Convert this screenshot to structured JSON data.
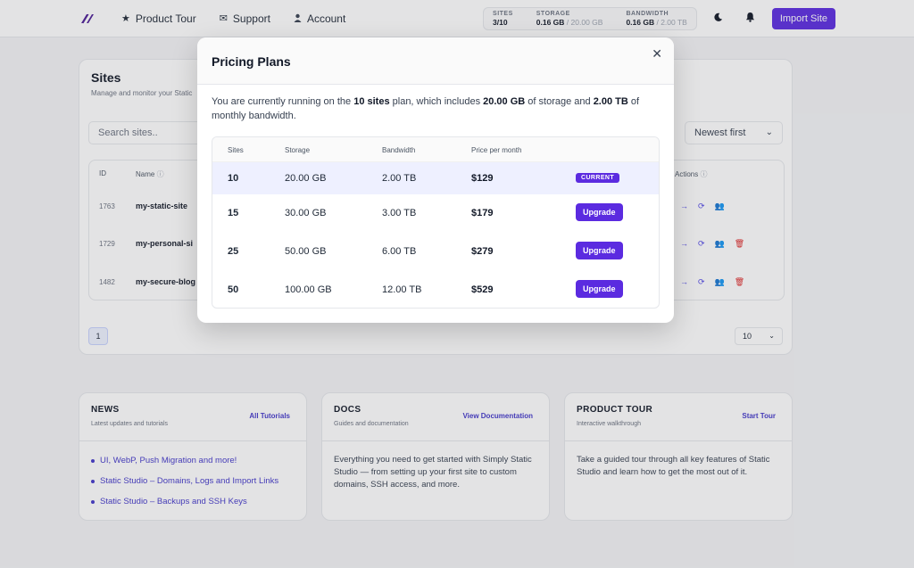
{
  "nav": {
    "items": [
      {
        "icon": "star-icon",
        "glyph": "★",
        "label": "Product Tour"
      },
      {
        "icon": "envelope-icon",
        "glyph": "✉",
        "label": "Support"
      },
      {
        "icon": "user-icon",
        "glyph": "👤",
        "label": "Account"
      }
    ],
    "usage": {
      "sites_label": "SITES",
      "sites_value": "3/10",
      "storage_label": "STORAGE",
      "storage_used": "0.16 GB",
      "storage_total": "/ 20.00 GB",
      "bandwidth_label": "BANDWIDTH",
      "bandwidth_used": "0.16 GB",
      "bandwidth_total": "/ 2.00 TB"
    },
    "import_label": "Import Site"
  },
  "sites": {
    "title": "Sites",
    "subtitle": "Manage and monitor your Static",
    "search_placeholder": "Search sites..",
    "sort_value": "Newest first",
    "columns": {
      "id": "ID",
      "name": "Name",
      "actions": "Actions"
    },
    "rows": [
      {
        "id": "1763",
        "name": "my-static-site"
      },
      {
        "id": "1729",
        "name": "my-personal-si"
      },
      {
        "id": "1482",
        "name": "my-secure-blog"
      }
    ],
    "page": "1",
    "per_page": "10"
  },
  "cards": {
    "news": {
      "title": "NEWS",
      "subtitle": "Latest updates and tutorials",
      "link": "All Tutorials",
      "items": [
        "UI, WebP, Push Migration and more!",
        "Static Studio – Domains, Logs and Import Links",
        "Static Studio – Backups and SSH Keys"
      ]
    },
    "docs": {
      "title": "DOCS",
      "subtitle": "Guides and documentation",
      "link": "View Documentation",
      "body": "Everything you need to get started with Simply Static Studio — from setting up your first site to custom domains, SSH access, and more."
    },
    "tour": {
      "title": "PRODUCT TOUR",
      "subtitle": "Interactive walkthrough",
      "link": "Start Tour",
      "body": "Take a guided tour through all key features of Static Studio and learn how to get the most out of it."
    }
  },
  "modal": {
    "title": "Pricing Plans",
    "intro_1": "You are currently running on the ",
    "intro_sites": "10 sites",
    "intro_2": " plan, which includes ",
    "intro_storage": "20.00 GB",
    "intro_3": " of storage and ",
    "intro_bandwidth": "2.00 TB",
    "intro_4": " of monthly bandwidth.",
    "headers": {
      "sites": "Sites",
      "storage": "Storage",
      "bandwidth": "Bandwidth",
      "price": "Price per month"
    },
    "plans": [
      {
        "sites": "10",
        "storage": "20.00 GB",
        "bandwidth": "2.00 TB",
        "price": "$129",
        "action": "CURRENT"
      },
      {
        "sites": "15",
        "storage": "30.00 GB",
        "bandwidth": "3.00 TB",
        "price": "$179",
        "action": "Upgrade"
      },
      {
        "sites": "25",
        "storage": "50.00 GB",
        "bandwidth": "6.00 TB",
        "price": "$279",
        "action": "Upgrade"
      },
      {
        "sites": "50",
        "storage": "100.00 GB",
        "bandwidth": "12.00 TB",
        "price": "$529",
        "action": "Upgrade"
      }
    ]
  }
}
